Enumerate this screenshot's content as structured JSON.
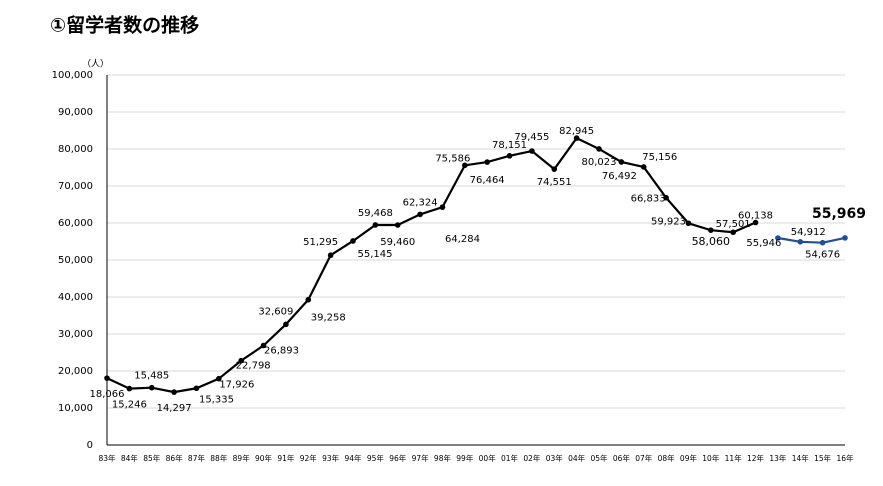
{
  "chart_data": {
    "type": "line",
    "title": "①留学者数の推移",
    "y_unit": "（人）",
    "categories": [
      "83年",
      "84年",
      "85年",
      "86年",
      "87年",
      "88年",
      "89年",
      "90年",
      "91年",
      "92年",
      "93年",
      "94年",
      "95年",
      "96年",
      "97年",
      "98年",
      "99年",
      "00年",
      "01年",
      "02年",
      "03年",
      "04年",
      "05年",
      "06年",
      "07年",
      "08年",
      "09年",
      "10年",
      "11年",
      "12年",
      "13年",
      "14年",
      "15年",
      "16年"
    ],
    "series": [
      {
        "color": "#000000",
        "values": [
          18066,
          15246,
          15485,
          14297,
          15335,
          17926,
          22798,
          26893,
          32609,
          39258,
          51295,
          55145,
          59468,
          59460,
          62324,
          64284,
          75586,
          76464,
          78151,
          79455,
          74551,
          82945,
          80023,
          76492,
          75156,
          66833,
          59923,
          58060,
          57501,
          60138,
          null,
          null,
          null,
          null
        ],
        "value_labels": [
          "18,066",
          "15,246",
          "15,485",
          "14,297",
          "15,335",
          "17,926",
          "22,798",
          "26,893",
          "32,609",
          "39,258",
          "51,295",
          "55,145",
          "59,468",
          "59,460",
          "62,324",
          "64,284",
          "75,586",
          "76,464",
          "78,151",
          "79,455",
          "74,551",
          "82,945",
          "80,023",
          "76,492",
          "75,156",
          "66,833",
          "59,923",
          "58,060",
          "57,501",
          "60,138",
          null,
          null,
          null,
          null
        ]
      },
      {
        "color": "#1f4e9c",
        "values": [
          null,
          null,
          null,
          null,
          null,
          null,
          null,
          null,
          null,
          null,
          null,
          null,
          null,
          null,
          null,
          null,
          null,
          null,
          null,
          null,
          null,
          null,
          null,
          null,
          null,
          null,
          null,
          null,
          null,
          null,
          55946,
          54912,
          54676,
          55969
        ],
        "value_labels": [
          null,
          null,
          null,
          null,
          null,
          null,
          null,
          null,
          null,
          null,
          null,
          null,
          null,
          null,
          null,
          null,
          null,
          null,
          null,
          null,
          null,
          null,
          null,
          null,
          null,
          null,
          null,
          null,
          null,
          null,
          "55,946",
          "54,912",
          "54,676",
          "55,969"
        ]
      }
    ],
    "ylim": [
      0,
      100000
    ],
    "yticks": [
      0,
      {
        "value": 10000,
        "label": "10,000"
      },
      {
        "value": 20000,
        "label": "20,000"
      },
      {
        "value": 30000,
        "label": "30,000"
      },
      {
        "value": 40000,
        "label": "40,000"
      },
      {
        "value": 50000,
        "label": "50,000"
      },
      {
        "value": 60000,
        "label": "60,000"
      },
      {
        "value": 70000,
        "label": "70,000"
      },
      {
        "value": 80000,
        "label": "80,000"
      },
      {
        "value": 90000,
        "label": "90,000"
      },
      {
        "value": 100000,
        "label": "100,000"
      }
    ],
    "grid": true
  }
}
